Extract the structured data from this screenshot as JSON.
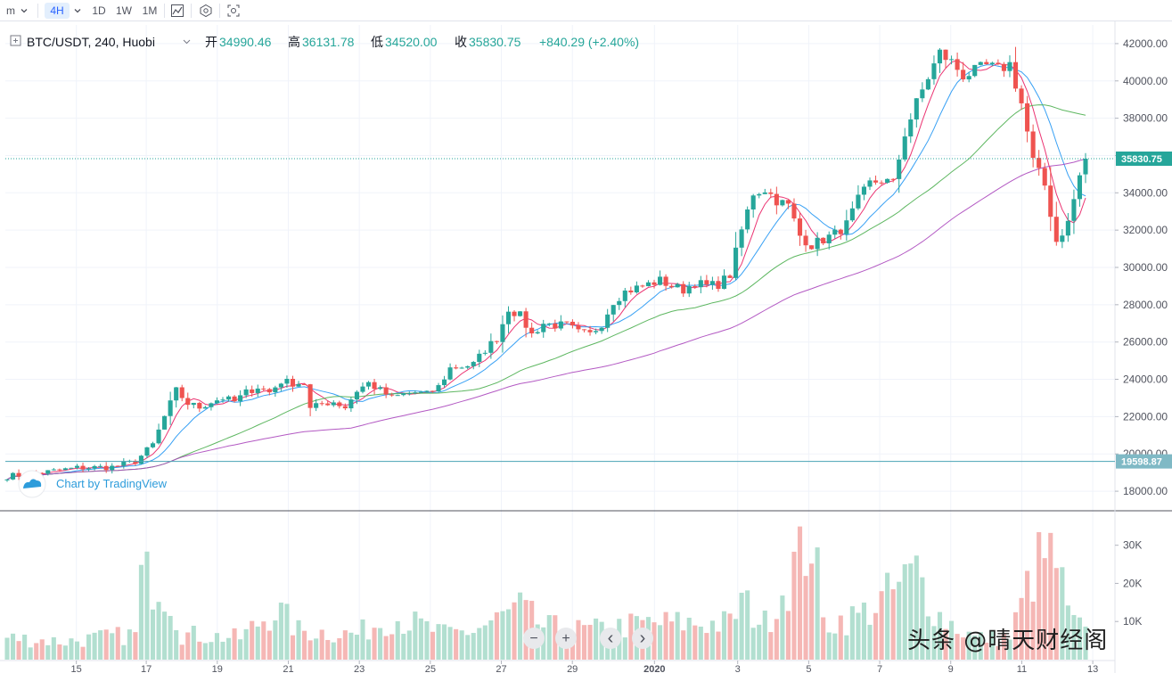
{
  "toolbar": {
    "interval_partial": "m",
    "interval_selected": "4H",
    "intervals": [
      "1D",
      "1W",
      "1M"
    ],
    "icons": [
      "compare-icon",
      "indicators-icon",
      "screenshot-icon"
    ]
  },
  "legend": {
    "symbol": "BTC/USDT, 240, Huobi",
    "open_label": "开",
    "open": "34990.46",
    "high_label": "高",
    "high": "36131.78",
    "low_label": "低",
    "low": "34520.00",
    "close_label": "收",
    "close": "35830.75",
    "change": "+840.29 (+2.40%)"
  },
  "branding": {
    "text": "Chart by TradingView"
  },
  "watermark": "头条 @晴天财经阁",
  "zoom_controls": [
    "−",
    "+",
    "‹",
    "›"
  ],
  "colors": {
    "up": "#26a69a",
    "down": "#ef5350",
    "up_light": "#b2dfd0",
    "down_light": "#f5b7b5",
    "ma_fast": "#e91e63",
    "ma_mid": "#2196f3",
    "ma_slow": "#4caf50",
    "ma_long": "#ab47bc",
    "last_price": "#26a69a",
    "ref_line": "#4aa3b5"
  },
  "chart_data": {
    "type": "candlestick",
    "price_axis": {
      "ticks": [
        "42000.00",
        "40000.00",
        "38000.00",
        "36000.00",
        "34000.00",
        "32000.00",
        "30000.00",
        "28000.00",
        "26000.00",
        "24000.00",
        "22000.00",
        "20000.00",
        "18000.00"
      ],
      "range": [
        17000,
        43000
      ]
    },
    "volume_axis": {
      "ticks": [
        "30K",
        "20K",
        "10K"
      ],
      "range": [
        0,
        36000
      ]
    },
    "time_axis": {
      "labels": [
        "15",
        "17",
        "19",
        "21",
        "23",
        "25",
        "27",
        "29",
        "2020",
        "3",
        "5",
        "7",
        "9",
        "11",
        "13"
      ]
    },
    "last_price": {
      "value": 35830.75,
      "label": "35830.75"
    },
    "ref_price": {
      "value": 19598.87,
      "label": "19598.87"
    },
    "ohlc_current": {
      "open": 34990.46,
      "high": 36131.78,
      "low": 34520.0,
      "close": 35830.75
    },
    "close_path": [
      [
        0,
        18800
      ],
      [
        6,
        19000
      ],
      [
        12,
        19250
      ],
      [
        18,
        19300
      ],
      [
        22,
        19600
      ],
      [
        25,
        20500
      ],
      [
        27,
        22000
      ],
      [
        29,
        23400
      ],
      [
        31,
        22700
      ],
      [
        33,
        22500
      ],
      [
        35,
        22800
      ],
      [
        37,
        23000
      ],
      [
        39,
        22800
      ],
      [
        41,
        23300
      ],
      [
        43,
        23600
      ],
      [
        45,
        23300
      ],
      [
        47,
        23900
      ],
      [
        49,
        23800
      ],
      [
        51,
        23800
      ],
      [
        52,
        22400
      ],
      [
        54,
        22700
      ],
      [
        56,
        22800
      ],
      [
        58,
        22500
      ],
      [
        60,
        23400
      ],
      [
        62,
        23800
      ],
      [
        64,
        23400
      ],
      [
        66,
        23000
      ],
      [
        68,
        23200
      ],
      [
        70,
        23300
      ],
      [
        72,
        23200
      ],
      [
        74,
        23600
      ],
      [
        76,
        24600
      ],
      [
        78,
        24700
      ],
      [
        80,
        24800
      ],
      [
        82,
        25600
      ],
      [
        84,
        26200
      ],
      [
        86,
        27800
      ],
      [
        88,
        27400
      ],
      [
        90,
        26400
      ],
      [
        92,
        27000
      ],
      [
        94,
        26900
      ],
      [
        96,
        26900
      ],
      [
        98,
        26500
      ],
      [
        100,
        26400
      ],
      [
        102,
        27000
      ],
      [
        104,
        28200
      ],
      [
        106,
        28700
      ],
      [
        108,
        28900
      ],
      [
        110,
        29100
      ],
      [
        112,
        29300
      ],
      [
        114,
        29000
      ],
      [
        116,
        28800
      ],
      [
        118,
        29200
      ],
      [
        120,
        29000
      ],
      [
        122,
        29100
      ],
      [
        124,
        29600
      ],
      [
        126,
        32000
      ],
      [
        128,
        34000
      ],
      [
        130,
        34200
      ],
      [
        132,
        33600
      ],
      [
        134,
        33300
      ],
      [
        136,
        31700
      ],
      [
        138,
        31200
      ],
      [
        140,
        31500
      ],
      [
        142,
        31800
      ],
      [
        144,
        32300
      ],
      [
        146,
        33600
      ],
      [
        148,
        34500
      ],
      [
        150,
        34700
      ],
      [
        152,
        34500
      ],
      [
        154,
        37200
      ],
      [
        156,
        38800
      ],
      [
        158,
        40200
      ],
      [
        160,
        41500
      ],
      [
        162,
        41000
      ],
      [
        164,
        40300
      ],
      [
        166,
        40500
      ],
      [
        168,
        40800
      ],
      [
        170,
        40600
      ],
      [
        172,
        40900
      ],
      [
        174,
        38800
      ],
      [
        176,
        35700
      ],
      [
        178,
        34400
      ],
      [
        180,
        31400
      ],
      [
        182,
        32400
      ],
      [
        184,
        34900
      ],
      [
        185,
        35830
      ]
    ],
    "volume_path": [
      [
        0,
        6000
      ],
      [
        10,
        5000
      ],
      [
        22,
        7000
      ],
      [
        23,
        22000
      ],
      [
        26,
        23000
      ],
      [
        28,
        18000
      ],
      [
        30,
        7000
      ],
      [
        40,
        6000
      ],
      [
        46,
        14000
      ],
      [
        50,
        8000
      ],
      [
        60,
        7000
      ],
      [
        66,
        12000
      ],
      [
        75,
        7000
      ],
      [
        80,
        8000
      ],
      [
        88,
        14000
      ],
      [
        92,
        9000
      ],
      [
        100,
        8000
      ],
      [
        110,
        10000
      ],
      [
        124,
        10000
      ],
      [
        126,
        16000
      ],
      [
        130,
        10000
      ],
      [
        138,
        35000
      ],
      [
        140,
        10000
      ],
      [
        146,
        12000
      ],
      [
        150,
        16000
      ],
      [
        156,
        24000
      ],
      [
        160,
        12000
      ],
      [
        166,
        6000
      ],
      [
        172,
        6000
      ],
      [
        176,
        24000
      ],
      [
        178,
        28000
      ],
      [
        180,
        27000
      ],
      [
        182,
        12000
      ],
      [
        185,
        7000
      ]
    ],
    "ma_lengths": [
      5,
      10,
      30,
      60
    ]
  }
}
